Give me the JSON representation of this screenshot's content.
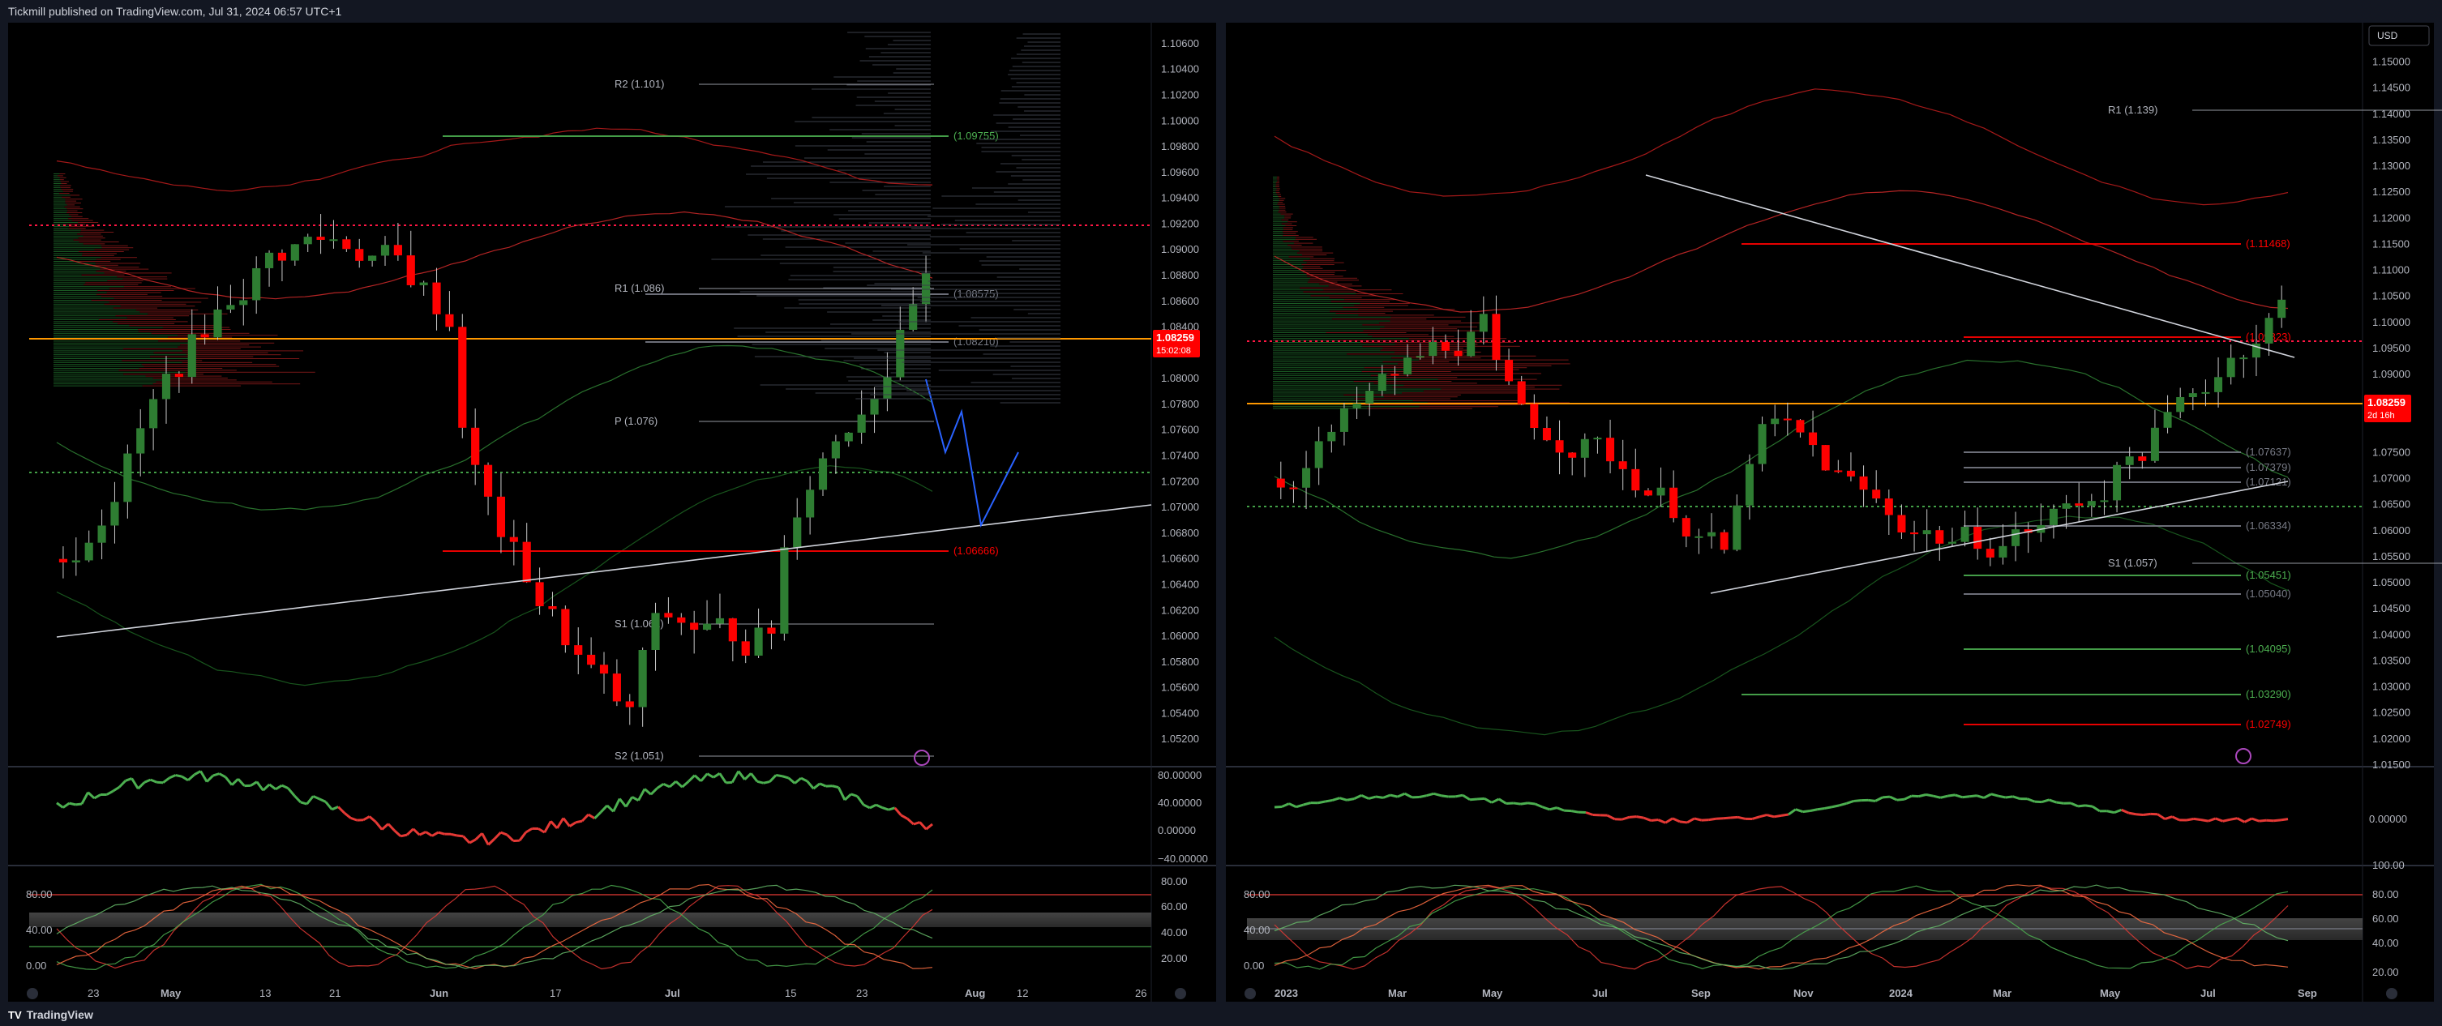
{
  "header": {
    "published_text": "Tickmill published on TradingView.com, Jul 31, 2024 06:57 UTC+1"
  },
  "footer": {
    "brand": "TradingView",
    "brand_icon": "tradingview-logo-icon"
  },
  "colors": {
    "bg": "#000000",
    "up": "#2e7d32",
    "down": "#ff0000",
    "orange": "#ff9800",
    "accent": "#ff9800"
  },
  "left_panel": {
    "price_axis": [
      "1.10600",
      "1.10400",
      "1.10200",
      "1.10000",
      "1.09800",
      "1.09600",
      "1.09400",
      "1.09200",
      "1.09000",
      "1.08800",
      "1.08600",
      "1.08400",
      "1.08000",
      "1.07800",
      "1.07600",
      "1.07400",
      "1.07200",
      "1.07000",
      "1.06800",
      "1.06600",
      "1.06400",
      "1.06200",
      "1.06000",
      "1.05800",
      "1.05600",
      "1.05400",
      "1.05200"
    ],
    "last_price": "1.08259",
    "countdown": "15:02:08",
    "pivots": [
      {
        "label": "R2 (1.101)",
        "price": 1.101
      },
      {
        "label": "R1 (1.086)",
        "price": 1.086
      },
      {
        "label": "P (1.076)",
        "price": 1.076
      },
      {
        "label": "S1 (1.061)",
        "price": 1.061
      },
      {
        "label": "S2 (1.051)",
        "price": 1.051
      }
    ],
    "levels": [
      {
        "label": "(1.09755)",
        "color": "#4caf50"
      },
      {
        "label": "(1.08575)",
        "color": "#787b86"
      },
      {
        "label": "(1.08210)",
        "color": "#787b86"
      },
      {
        "label": "(1.06666)",
        "color": "#ff0000"
      }
    ],
    "time_axis": [
      "23",
      "May",
      "13",
      "21",
      "Jun",
      "17",
      "Jul",
      "15",
      "23",
      "Aug",
      "12",
      "26"
    ],
    "macd_axis": [
      "80.00000",
      "40.00000",
      "0.00000",
      "−40.00000"
    ],
    "stoch_axis_left": [
      "80.00",
      "40.00",
      "0.00"
    ],
    "stoch_axis_right": [
      "80.00",
      "60.00",
      "40.00",
      "20.00"
    ]
  },
  "right_panel": {
    "currency_button": "USD",
    "price_axis": [
      "1.15000",
      "1.14500",
      "1.14000",
      "1.13500",
      "1.13000",
      "1.12500",
      "1.12000",
      "1.11500",
      "1.11000",
      "1.10500",
      "1.10000",
      "1.09500",
      "1.09000",
      "1.08500",
      "1.07500",
      "1.07000",
      "1.06500",
      "1.06000",
      "1.05500",
      "1.05000",
      "1.04500",
      "1.04000",
      "1.03500",
      "1.03000",
      "1.02500",
      "1.02000",
      "1.01500"
    ],
    "last_price": "1.08259",
    "countdown": "2d 16h",
    "pivots": [
      {
        "label": "R1 (1.139)",
        "price": 1.139
      },
      {
        "label": "S1 (1.057)",
        "price": 1.057
      }
    ],
    "levels": [
      {
        "label": "(1.11468)",
        "color": "#ff0000"
      },
      {
        "label": "(1.09823)",
        "color": "#ff0000"
      },
      {
        "label": "(1.07637)",
        "color": "#787b86"
      },
      {
        "label": "(1.07379)",
        "color": "#787b86"
      },
      {
        "label": "(1.07121)",
        "color": "#787b86"
      },
      {
        "label": "(1.06334)",
        "color": "#787b86"
      },
      {
        "label": "(1.05451)",
        "color": "#4caf50"
      },
      {
        "label": "(1.05040)",
        "color": "#787b86"
      },
      {
        "label": "(1.04095)",
        "color": "#4caf50"
      },
      {
        "label": "(1.03290)",
        "color": "#4caf50"
      },
      {
        "label": "(1.02749)",
        "color": "#ff0000"
      }
    ],
    "time_axis": [
      "2023",
      "Mar",
      "May",
      "Jul",
      "Sep",
      "Nov",
      "2024",
      "Mar",
      "May",
      "Jul",
      "Sep"
    ],
    "macd_axis": [
      "0.00000"
    ],
    "stoch_axis_left": [
      "80.00",
      "40.00",
      "0.00"
    ],
    "stoch_axis_right": [
      "100.00",
      "80.00",
      "60.00",
      "40.00",
      "20.00"
    ]
  }
}
